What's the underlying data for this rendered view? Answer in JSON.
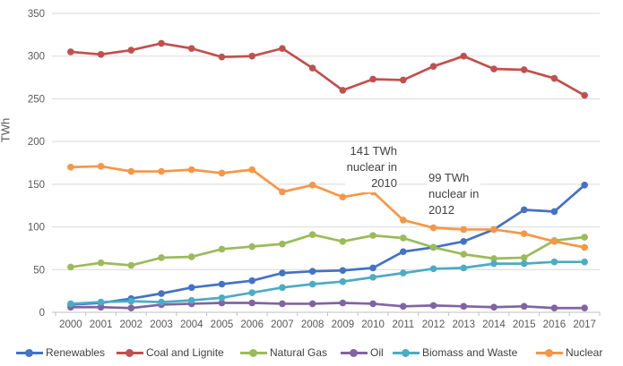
{
  "chart_data": {
    "type": "line",
    "title": "",
    "ylabel": "TWh",
    "xlabel": "",
    "x": [
      "2000",
      "2001",
      "2002",
      "2003",
      "2004",
      "2005",
      "2006",
      "2007",
      "2008",
      "2009",
      "2010",
      "2011",
      "2012",
      "2013",
      "2014",
      "2015",
      "2016",
      "2017"
    ],
    "ylim": [
      0,
      350
    ],
    "yticks": [
      0,
      50,
      100,
      150,
      200,
      250,
      300,
      350
    ],
    "grid": "horizontal",
    "legend_position": "bottom",
    "series": [
      {
        "name": "Renewables",
        "color": "#4472C4",
        "values": [
          9,
          11,
          16,
          22,
          29,
          33,
          37,
          46,
          48,
          49,
          52,
          71,
          76,
          83,
          97,
          120,
          118,
          149
        ]
      },
      {
        "name": "Coal and Lignite",
        "color": "#C0504D",
        "values": [
          305,
          302,
          307,
          315,
          309,
          299,
          300,
          309,
          286,
          260,
          273,
          272,
          288,
          300,
          285,
          284,
          274,
          254
        ]
      },
      {
        "name": "Natural Gas",
        "color": "#9BBB59",
        "values": [
          53,
          58,
          55,
          64,
          65,
          74,
          77,
          80,
          91,
          83,
          90,
          87,
          76,
          68,
          63,
          64,
          84,
          88
        ]
      },
      {
        "name": "Oil",
        "color": "#8064A2",
        "values": [
          6,
          6,
          5,
          9,
          10,
          11,
          11,
          10,
          10,
          11,
          10,
          7,
          8,
          7,
          6,
          7,
          5,
          5
        ]
      },
      {
        "name": "Biomass and Waste",
        "color": "#4BACC6",
        "values": [
          10,
          12,
          13,
          12,
          14,
          17,
          23,
          29,
          33,
          36,
          41,
          46,
          51,
          52,
          57,
          57,
          59,
          59
        ]
      },
      {
        "name": "Nuclear",
        "color": "#F79646",
        "values": [
          170,
          171,
          165,
          165,
          167,
          163,
          167,
          141,
          149,
          135,
          141,
          108,
          99,
          97,
          97,
          92,
          83,
          76
        ]
      }
    ],
    "annotations": [
      {
        "text": "141 TWh\nnuclear in\n2010",
        "align": "right"
      },
      {
        "text": "99 TWh\nnuclear in\n2012",
        "align": "left"
      }
    ]
  },
  "style_colors": {
    "gridline": "#D9D9D9",
    "axis_line": "#BFBFBF",
    "axis_text": "#595959",
    "legend_text": "#404040",
    "annotation_text": "#404040"
  },
  "legend_item_lefts": [
    18,
    130,
    268,
    380,
    438,
    598
  ]
}
